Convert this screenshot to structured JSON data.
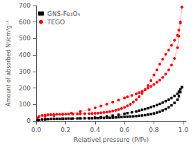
{
  "chart_data": {
    "type": "line",
    "xlabel": "Relativel pressure (P/P₀)",
    "ylabel": "Amount of absorbed N²/cm³g⁻¹",
    "xlim": [
      0.0,
      1.02
    ],
    "ylim": [
      0,
      700
    ],
    "xticks": [
      {
        "value": 0.0,
        "label": "0.0"
      },
      0.2,
      0.4,
      0.6,
      0.8,
      {
        "value": 1.0,
        "label": "1.0"
      }
    ],
    "yticks": [
      0,
      100,
      200,
      300,
      400,
      500,
      600,
      700
    ],
    "grid": false,
    "legend": "upper left",
    "series": [
      {
        "name": "GNS-Fe₃O₄",
        "marker": "square",
        "color": "black",
        "line_color": "#aaaaaa",
        "x": [
          0.01,
          0.02,
          0.04,
          0.06,
          0.08,
          0.1,
          0.12,
          0.14,
          0.16,
          0.18,
          0.2,
          0.22,
          0.25,
          0.28,
          0.3,
          0.33,
          0.36,
          0.38,
          0.4,
          0.42,
          0.44,
          0.46,
          0.48,
          0.5,
          0.52,
          0.54,
          0.56,
          0.58,
          0.6,
          0.62,
          0.64,
          0.66,
          0.68,
          0.7,
          0.72,
          0.74,
          0.76,
          0.78,
          0.8,
          0.82,
          0.84,
          0.86,
          0.88,
          0.9,
          0.92,
          0.94,
          0.96,
          0.97,
          0.98,
          0.99
        ],
        "values": [
          5,
          7,
          9,
          10,
          11,
          12,
          12,
          13,
          13,
          14,
          14,
          15,
          15,
          16,
          16,
          17,
          17,
          17,
          18,
          18,
          19,
          19,
          20,
          20,
          21,
          22,
          23,
          24,
          25,
          26,
          27,
          28,
          30,
          32,
          34,
          36,
          39,
          42,
          46,
          51,
          57,
          64,
          73,
          83,
          95,
          110,
          130,
          150,
          175,
          205
        ]
      },
      {
        "marker": "square",
        "color": "black",
        "line_color": "#aaaaaa",
        "x": [
          0.99,
          0.98,
          0.97,
          0.96,
          0.94,
          0.92,
          0.9,
          0.88,
          0.86,
          0.84,
          0.82,
          0.8,
          0.78,
          0.76,
          0.74,
          0.72,
          0.7,
          0.68,
          0.65,
          0.62,
          0.6,
          0.56,
          0.52,
          0.48,
          0.44,
          0.4,
          0.36,
          0.3,
          0.24,
          0.18,
          0.12,
          0.06
        ],
        "values": [
          205,
          192,
          178,
          165,
          152,
          140,
          130,
          120,
          112,
          104,
          97,
          90,
          84,
          78,
          73,
          68,
          63,
          58,
          53,
          48,
          44,
          38,
          33,
          28,
          24,
          21,
          18,
          16,
          14,
          13,
          12,
          10
        ]
      },
      {
        "name": "TEGO",
        "marker": "circle",
        "color": "red",
        "line_color": "#ffbbbb",
        "x": [
          0.01,
          0.02,
          0.04,
          0.06,
          0.08,
          0.1,
          0.12,
          0.14,
          0.16,
          0.18,
          0.2,
          0.22,
          0.25,
          0.28,
          0.3,
          0.33,
          0.36,
          0.38,
          0.4,
          0.42,
          0.44,
          0.46,
          0.48,
          0.5,
          0.52,
          0.54,
          0.56,
          0.58,
          0.6,
          0.62,
          0.64,
          0.66,
          0.68,
          0.7,
          0.72,
          0.74,
          0.76,
          0.78,
          0.8,
          0.82,
          0.84,
          0.86,
          0.88,
          0.9,
          0.92,
          0.94,
          0.96,
          0.97,
          0.98,
          0.99
        ],
        "values": [
          20,
          28,
          34,
          36,
          38,
          39,
          40,
          41,
          41,
          42,
          42,
          43,
          43,
          44,
          44,
          45,
          45,
          46,
          47,
          48,
          50,
          52,
          54,
          57,
          61,
          65,
          70,
          76,
          83,
          92,
          102,
          115,
          130,
          148,
          168,
          190,
          215,
          245,
          280,
          310,
          345,
          375,
          405,
          430,
          460,
          490,
          520,
          550,
          595,
          690
        ]
      },
      {
        "marker": "circle",
        "color": "red",
        "line_color": "#ffbbbb",
        "x": [
          0.99,
          0.98,
          0.97,
          0.96,
          0.94,
          0.92,
          0.9,
          0.88,
          0.86,
          0.84,
          0.82,
          0.8,
          0.78,
          0.76,
          0.74,
          0.72,
          0.7,
          0.68,
          0.65,
          0.62,
          0.6,
          0.56,
          0.52,
          0.48,
          0.44,
          0.4,
          0.36,
          0.3,
          0.24,
          0.18,
          0.12,
          0.06
        ],
        "values": [
          690,
          600,
          515,
          445,
          380,
          340,
          310,
          285,
          265,
          248,
          235,
          222,
          210,
          200,
          190,
          180,
          172,
          165,
          155,
          147,
          140,
          128,
          115,
          103,
          91,
          80,
          69,
          58,
          48,
          40,
          33,
          28
        ]
      }
    ]
  }
}
